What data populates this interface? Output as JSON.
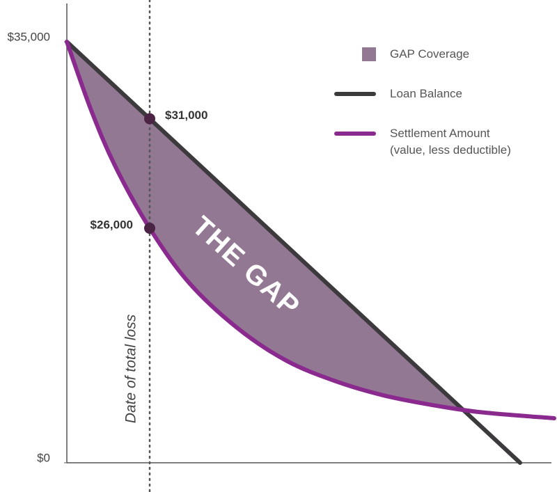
{
  "chart_data": {
    "type": "line",
    "xlim": [
      0,
      100
    ],
    "ylim": [
      0,
      35000
    ],
    "yticks": [
      {
        "value": 0,
        "label": "$0"
      },
      {
        "value": 35000,
        "label": "$35,000"
      }
    ],
    "area_label": "THE GAP",
    "area_name": "GAP Coverage",
    "area_color": "#937893",
    "marker_x": 17,
    "marker_label": "Date of total loss",
    "annotations": [
      "$31,000",
      "$26,000"
    ],
    "legend": "upper right",
    "series": [
      {
        "name": "Loan Balance",
        "color": "#3d3a3e",
        "x": [
          0,
          93
        ],
        "values": [
          35000,
          0
        ]
      },
      {
        "name": "Settlement Amount\n(value, less deductible)",
        "color": "#8b2a8e",
        "x": [
          0,
          5,
          10,
          17,
          25,
          35,
          45,
          55,
          65,
          75,
          85,
          100
        ],
        "values": [
          35000,
          29300,
          24600,
          19500,
          15000,
          11200,
          8500,
          6800,
          5600,
          4800,
          4200,
          3700
        ]
      }
    ]
  }
}
